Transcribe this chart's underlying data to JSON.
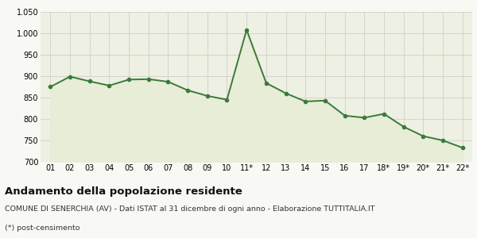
{
  "x_labels": [
    "01",
    "02",
    "03",
    "04",
    "05",
    "06",
    "07",
    "08",
    "09",
    "10",
    "11*",
    "12",
    "13",
    "14",
    "15",
    "16",
    "17",
    "18*",
    "19*",
    "20*",
    "21*",
    "22*"
  ],
  "y_values": [
    875,
    899,
    888,
    878,
    892,
    893,
    887,
    867,
    854,
    845,
    1008,
    884,
    860,
    841,
    843,
    808,
    803,
    812,
    782,
    760,
    750,
    733
  ],
  "ylim": [
    700,
    1050
  ],
  "yticks": [
    700,
    750,
    800,
    850,
    900,
    950,
    1000,
    1050
  ],
  "line_color": "#3a7a3a",
  "fill_color": "#e8edd8",
  "marker": "o",
  "marker_size": 3,
  "line_width": 1.4,
  "grid_color": "#d0d0c8",
  "background_color": "#f8f8f4",
  "plot_bg_color": "#edf0e2",
  "title": "Andamento della popolazione residente",
  "subtitle": "COMUNE DI SENERCHIA (AV) - Dati ISTAT al 31 dicembre di ogni anno - Elaborazione TUTTITALIA.IT",
  "footnote": "(*) post-censimento",
  "title_fontsize": 9.5,
  "subtitle_fontsize": 6.8,
  "footnote_fontsize": 6.8,
  "tick_fontsize": 7
}
